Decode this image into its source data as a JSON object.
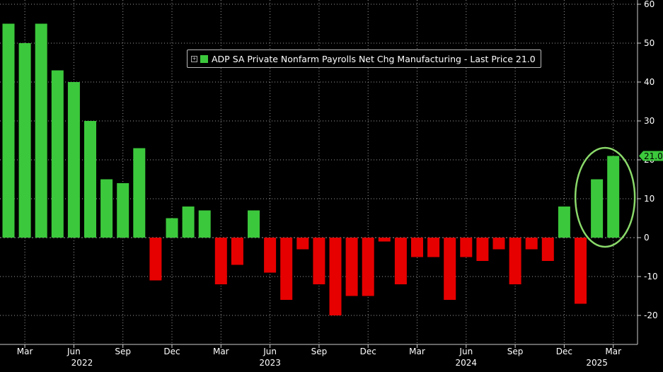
{
  "chart_data": {
    "type": "bar",
    "legend": "ADP SA Private Nonfarm Payrolls Net Chg Manufacturing - Last Price 21.0",
    "last_value_label": "21.0",
    "ylim": [
      -27,
      60
    ],
    "y_ticks": [
      -20,
      -10,
      0,
      10,
      20,
      30,
      40,
      50,
      60
    ],
    "x_ticks": [
      {
        "index": 1,
        "label": "Mar"
      },
      {
        "index": 4,
        "label": "Jun"
      },
      {
        "index": 7,
        "label": "Sep"
      },
      {
        "index": 10,
        "label": "Dec"
      },
      {
        "index": 13,
        "label": "Mar"
      },
      {
        "index": 16,
        "label": "Jun"
      },
      {
        "index": 19,
        "label": "Sep"
      },
      {
        "index": 22,
        "label": "Dec"
      },
      {
        "index": 25,
        "label": "Mar"
      },
      {
        "index": 28,
        "label": "Jun"
      },
      {
        "index": 31,
        "label": "Sep"
      },
      {
        "index": 34,
        "label": "Dec"
      },
      {
        "index": 37,
        "label": "Mar"
      }
    ],
    "year_labels": [
      {
        "index": 4.5,
        "label": "2022"
      },
      {
        "index": 16,
        "label": "2023"
      },
      {
        "index": 28,
        "label": "2024"
      },
      {
        "index": 36,
        "label": "2025"
      }
    ],
    "values": [
      55,
      50,
      55,
      43,
      40,
      30,
      15,
      14,
      23,
      -11,
      5,
      8,
      7,
      -12,
      -7,
      7,
      -9,
      -16,
      -3,
      -12,
      -20,
      -15,
      -15,
      -1,
      -12,
      -5,
      -5,
      -16,
      -5,
      -6,
      -3,
      -12,
      -3,
      -6,
      8,
      -17,
      15,
      21
    ],
    "grid": true,
    "colors": {
      "positive": "#3cc83c",
      "negative": "#e60000",
      "highlight_ellipse": "#8ad96a",
      "grid": "#9a9a9a"
    }
  }
}
